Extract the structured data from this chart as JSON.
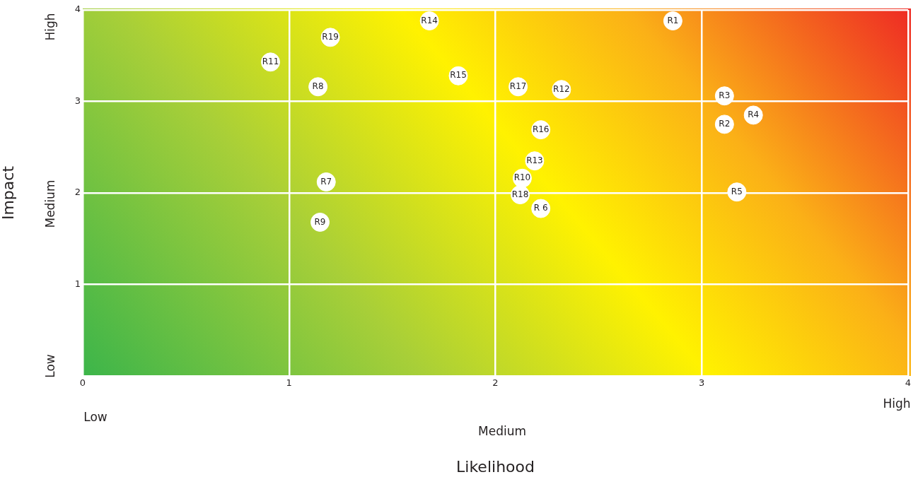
{
  "chart_data": {
    "type": "scatter",
    "xlabel": "Likelihood",
    "ylabel": "Impact",
    "xlim": [
      0,
      4
    ],
    "xticks": [
      0,
      1,
      2,
      3,
      4
    ],
    "ylim": [
      0,
      4
    ],
    "yticks": [
      {
        "value": 0,
        "label": null
      },
      1,
      2,
      3,
      4
    ],
    "grid": true,
    "legend": false,
    "marker": "circle",
    "series": [
      {
        "color": "#ffffff",
        "x": [
          2.86,
          1.68,
          1.2,
          0.91,
          1.14,
          1.82,
          2.11,
          2.32,
          3.11,
          3.25,
          3.11,
          2.22,
          2.19,
          2.13,
          1.18,
          2.12,
          3.17,
          2.22,
          1.15
        ],
        "values": [
          3.88,
          3.88,
          3.7,
          3.43,
          3.16,
          3.28,
          3.16,
          3.13,
          3.06,
          2.85,
          2.75,
          2.69,
          2.35,
          2.16,
          2.12,
          1.98,
          2.01,
          1.83,
          1.68
        ]
      }
    ],
    "annotations": [
      {
        "text": "R1",
        "x": 2.86,
        "y": 3.88
      },
      {
        "text": "R14",
        "x": 1.68,
        "y": 3.88
      },
      {
        "text": "R19",
        "x": 1.2,
        "y": 3.7
      },
      {
        "text": "R11",
        "x": 0.91,
        "y": 3.43
      },
      {
        "text": "R8",
        "x": 1.14,
        "y": 3.16
      },
      {
        "text": "R15",
        "x": 1.82,
        "y": 3.28
      },
      {
        "text": "R17",
        "x": 2.11,
        "y": 3.16
      },
      {
        "text": "R12",
        "x": 2.32,
        "y": 3.13
      },
      {
        "text": "R3",
        "x": 3.11,
        "y": 3.06
      },
      {
        "text": "R4",
        "x": 3.25,
        "y": 2.85
      },
      {
        "text": "R2",
        "x": 3.11,
        "y": 2.75
      },
      {
        "text": "R16",
        "x": 2.22,
        "y": 2.69
      },
      {
        "text": "R13",
        "x": 2.19,
        "y": 2.35
      },
      {
        "text": "R10",
        "x": 2.13,
        "y": 2.16
      },
      {
        "text": "R7",
        "x": 1.18,
        "y": 2.12
      },
      {
        "text": "R18",
        "x": 2.12,
        "y": 1.98
      },
      {
        "text": "R5",
        "x": 3.17,
        "y": 2.01
      },
      {
        "text": "R 6",
        "x": 2.22,
        "y": 1.83
      },
      {
        "text": "R9",
        "x": 1.15,
        "y": 1.68
      },
      "High",
      "Medium",
      "Low",
      "Low",
      "Medium",
      "High"
    ]
  }
}
